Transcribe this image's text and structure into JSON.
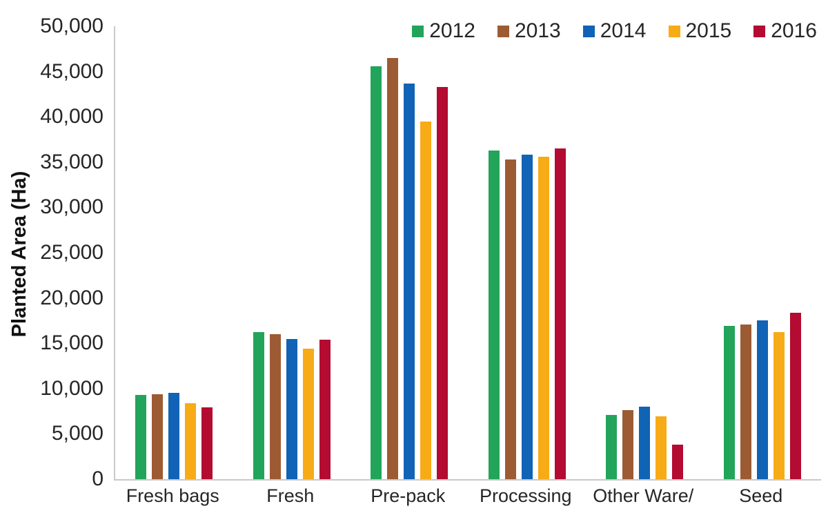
{
  "chart_data": {
    "type": "bar",
    "title": "",
    "xlabel": "",
    "ylabel": "Planted Area (Ha)",
    "ylim": [
      0,
      50000
    ],
    "grid": false,
    "legend_position": "top-right",
    "y_ticks": [
      {
        "value": 0,
        "label": "0"
      },
      {
        "value": 5000,
        "label": "5,000"
      },
      {
        "value": 10000,
        "label": "10,000"
      },
      {
        "value": 15000,
        "label": "15,000"
      },
      {
        "value": 20000,
        "label": "20,000"
      },
      {
        "value": 25000,
        "label": "25,000"
      },
      {
        "value": 30000,
        "label": "30,000"
      },
      {
        "value": 35000,
        "label": "35,000"
      },
      {
        "value": 40000,
        "label": "40,000"
      },
      {
        "value": 45000,
        "label": "45,000"
      },
      {
        "value": 50000,
        "label": "50,000"
      }
    ],
    "categories": [
      "Fresh bags",
      "Fresh",
      "Pre-pack",
      "Processing",
      "Other Ware/",
      "Seed"
    ],
    "series": [
      {
        "name": "2012",
        "color": "#22a45b",
        "values": [
          9300,
          16200,
          45600,
          36300,
          7100,
          16900
        ]
      },
      {
        "name": "2013",
        "color": "#9c5b33",
        "values": [
          9400,
          16000,
          46500,
          35300,
          7600,
          17100
        ]
      },
      {
        "name": "2014",
        "color": "#1063b5",
        "values": [
          9500,
          15500,
          43700,
          35800,
          8000,
          17500
        ]
      },
      {
        "name": "2015",
        "color": "#f7ab17",
        "values": [
          8400,
          14400,
          39500,
          35600,
          6900,
          16200
        ]
      },
      {
        "name": "2016",
        "color": "#b30b31",
        "values": [
          7900,
          15400,
          43300,
          36500,
          3800,
          18400
        ]
      }
    ],
    "axis_color": "#c9c9c9"
  }
}
